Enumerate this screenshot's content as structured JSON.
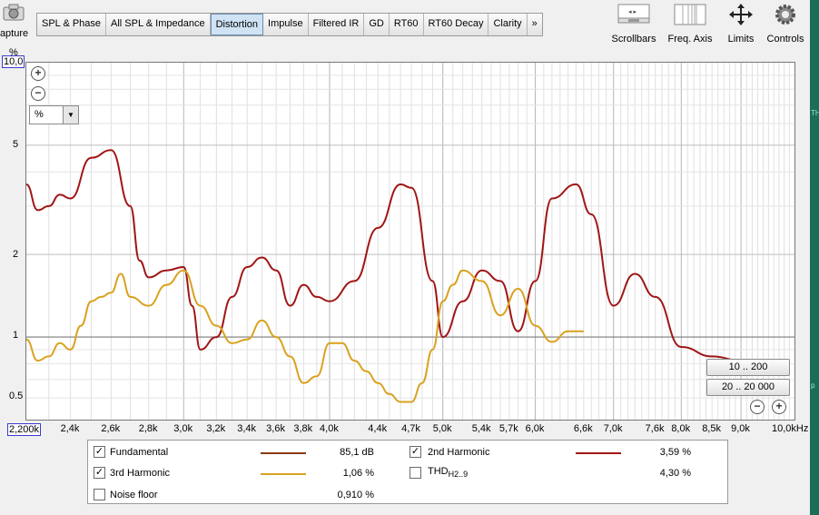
{
  "toolbar": {
    "capture_label": "Capture",
    "tabs": [
      "SPL & Phase",
      "All SPL & Impedance",
      "Distortion",
      "Impulse",
      "Filtered IR",
      "GD",
      "RT60",
      "RT60 Decay",
      "Clarity",
      "»"
    ],
    "active_tab": "Distortion",
    "right_buttons": [
      {
        "label": "Scrollbars",
        "icon": "scrollbars-icon"
      },
      {
        "label": "Freq. Axis",
        "icon": "freq-axis-icon"
      },
      {
        "label": "Limits",
        "icon": "limits-icon"
      },
      {
        "label": "Controls",
        "icon": "gear-icon"
      }
    ]
  },
  "plot": {
    "y_unit": "%",
    "y_max_label": "10,0",
    "y_ticks": [
      "5",
      "2",
      "1",
      "0.5"
    ],
    "x_min_label": "2,200k",
    "x_ticks": [
      "2,4k",
      "2,6k",
      "2,8k",
      "3,0k",
      "3,2k",
      "3,4k",
      "3,6k",
      "3,8k",
      "4,0k",
      "4,4k",
      "4,7k",
      "5,0k",
      "5,4k",
      "5,7k",
      "6,0k",
      "6,6k",
      "7,0k",
      "7,6k",
      "8,0k",
      "8,5k",
      "9,0k",
      "10,0kHz"
    ],
    "unit_select": "%",
    "range_buttons": [
      "10 .. 200",
      "20 .. 20 000"
    ]
  },
  "chart_data": {
    "type": "line",
    "x_unit": "Hz",
    "x_scale": "log",
    "y_scale": "log",
    "xlim": [
      2200,
      10000
    ],
    "ylim": [
      0.5,
      10
    ],
    "series": [
      {
        "name": "2nd Harmonic",
        "color": "#a01616",
        "x": [
          2200,
          2250,
          2300,
          2350,
          2400,
          2500,
          2600,
          2700,
          2750,
          2800,
          2900,
          3000,
          3050,
          3100,
          3200,
          3300,
          3400,
          3500,
          3600,
          3700,
          3800,
          3900,
          4000,
          4200,
          4400,
          4600,
          4700,
          4900,
          5000,
          5200,
          5400,
          5600,
          5800,
          6000,
          6200,
          6500,
          6700,
          7000,
          7300,
          7600,
          8000,
          8500,
          9000,
          9500
        ],
        "y": [
          3.6,
          2.9,
          3.0,
          3.3,
          3.2,
          4.5,
          4.8,
          3.0,
          1.9,
          1.65,
          1.75,
          1.8,
          1.3,
          0.9,
          1.0,
          1.4,
          1.8,
          1.95,
          1.75,
          1.3,
          1.55,
          1.4,
          1.35,
          1.6,
          2.5,
          3.6,
          3.5,
          1.6,
          1.0,
          1.35,
          1.75,
          1.6,
          1.05,
          1.6,
          3.2,
          3.6,
          2.8,
          1.3,
          1.7,
          1.4,
          0.92,
          0.85,
          0.82,
          0.76
        ]
      },
      {
        "name": "3rd Harmonic",
        "color": "#d9a21f",
        "x": [
          2200,
          2250,
          2300,
          2350,
          2400,
          2450,
          2500,
          2550,
          2600,
          2650,
          2700,
          2800,
          2900,
          3000,
          3100,
          3200,
          3300,
          3400,
          3500,
          3600,
          3700,
          3800,
          3900,
          4000,
          4100,
          4200,
          4300,
          4400,
          4500,
          4600,
          4700,
          4800,
          4900,
          5000,
          5100,
          5200,
          5400,
          5600,
          5800,
          6000,
          6200,
          6400,
          6600
        ],
        "y": [
          0.98,
          0.82,
          0.85,
          0.95,
          0.9,
          1.1,
          1.35,
          1.4,
          1.45,
          1.7,
          1.4,
          1.3,
          1.55,
          1.75,
          1.3,
          1.1,
          0.95,
          0.98,
          1.15,
          1.0,
          0.85,
          0.68,
          0.72,
          0.95,
          0.95,
          0.82,
          0.75,
          0.68,
          0.62,
          0.58,
          0.58,
          0.68,
          0.9,
          1.35,
          1.55,
          1.75,
          1.6,
          1.2,
          1.5,
          1.1,
          0.96,
          1.05,
          1.05
        ]
      }
    ]
  },
  "legend": {
    "rows": [
      {
        "label": "Fundamental",
        "checked": true,
        "color": "#8b3a14",
        "value": "85,1 dB"
      },
      {
        "label": "3rd Harmonic",
        "checked": true,
        "color": "#d9a21f",
        "value": "1,06 %"
      },
      {
        "label": "Noise floor",
        "checked": false,
        "color": "",
        "value": "0,910 %"
      },
      {
        "label": "2nd Harmonic",
        "checked": true,
        "color": "#a01616",
        "value": "3,59 %"
      },
      {
        "label": "THD",
        "sub": "H2..9",
        "checked": false,
        "color": "",
        "value": "4,30 %"
      }
    ]
  },
  "side": {
    "text1": "TH",
    "text2": "p"
  }
}
